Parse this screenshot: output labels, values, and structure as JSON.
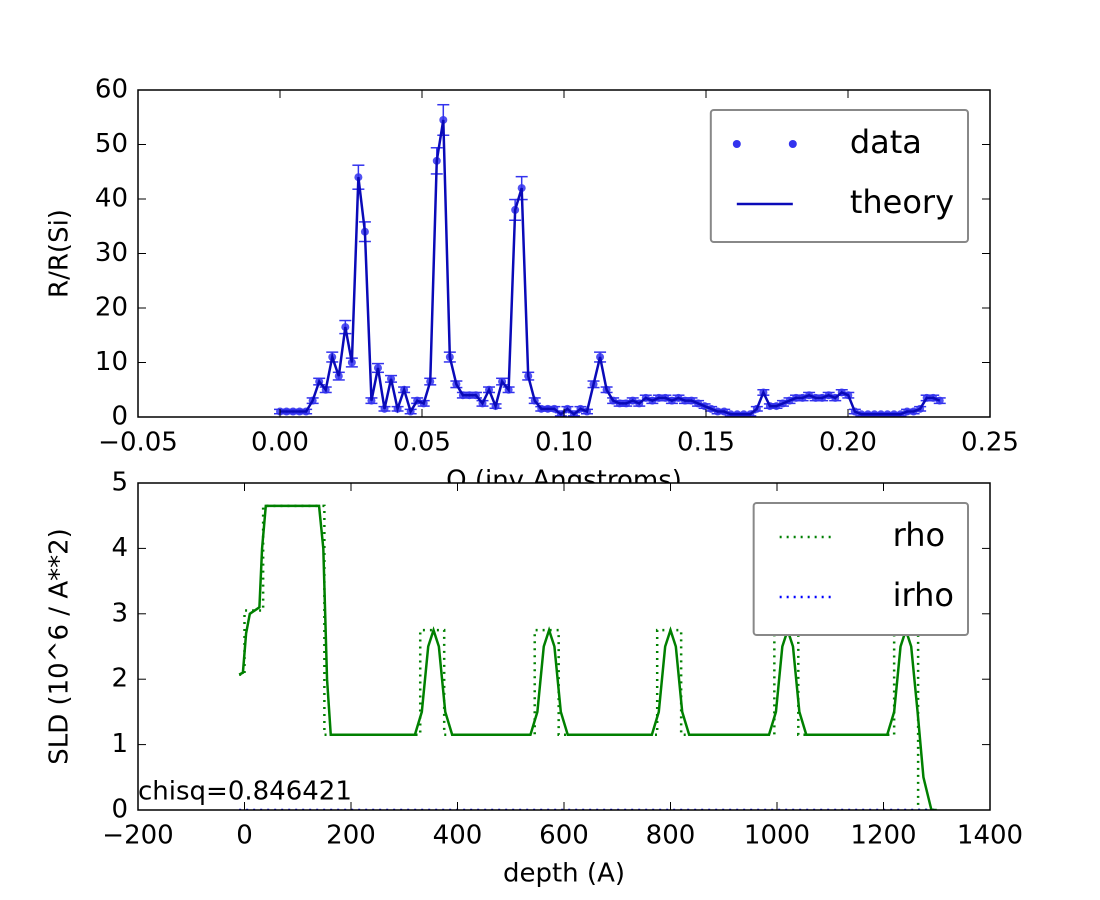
{
  "chart_data": [
    {
      "type": "line",
      "x_label": "Q (inv Angstroms)",
      "y_label": "R/R(Si)",
      "xlim": [
        -0.05,
        0.25
      ],
      "ylim": [
        0,
        60
      ],
      "xticks": [
        {
          "value": -0.05,
          "label": "−0.05"
        },
        {
          "value": 0,
          "label": "0.00"
        },
        0.05,
        {
          "value": 0.1,
          "label": "0.10"
        },
        0.15,
        {
          "value": 0.2,
          "label": "0.20"
        },
        0.25
      ],
      "yticks": [
        0,
        10,
        20,
        30,
        40,
        50,
        60
      ],
      "legend": "upper right",
      "x": [
        0,
        0.0023,
        0.0046,
        0.0069,
        0.0092,
        0.0115,
        0.0138,
        0.0161,
        0.0184,
        0.0207,
        0.023,
        0.0253,
        0.0276,
        0.0299,
        0.0322,
        0.0345,
        0.0368,
        0.0391,
        0.0414,
        0.0437,
        0.046,
        0.0483,
        0.0506,
        0.0529,
        0.0552,
        0.0575,
        0.0598,
        0.0621,
        0.0644,
        0.0667,
        0.069,
        0.0713,
        0.0736,
        0.0759,
        0.0782,
        0.0805,
        0.0828,
        0.0851,
        0.0874,
        0.0897,
        0.092,
        0.0943,
        0.0966,
        0.0989,
        0.1012,
        0.1035,
        0.1058,
        0.1081,
        0.1104,
        0.1127,
        0.115,
        0.1173,
        0.1196,
        0.1219,
        0.1242,
        0.1265,
        0.1288,
        0.1311,
        0.1334,
        0.1357,
        0.138,
        0.1403,
        0.1426,
        0.1449,
        0.1472,
        0.1495,
        0.1518,
        0.1541,
        0.1564,
        0.1587,
        0.161,
        0.1633,
        0.1656,
        0.1679,
        0.1702,
        0.1725,
        0.1748,
        0.1771,
        0.1794,
        0.1817,
        0.184,
        0.1863,
        0.1886,
        0.1909,
        0.1932,
        0.1955,
        0.1978,
        0.2001,
        0.2024,
        0.2047,
        0.207,
        0.2093,
        0.2116,
        0.2139,
        0.2162,
        0.2185,
        0.2208,
        0.2231,
        0.2254,
        0.2277,
        0.23,
        0.2323
      ],
      "series": [
        {
          "name": "data",
          "color": "#3333ee",
          "mode": "markers",
          "values": [
            1,
            1,
            1,
            1,
            1,
            3,
            6.5,
            5,
            11,
            7.5,
            16.5,
            10,
            44,
            34,
            3,
            9,
            1.5,
            7,
            1.5,
            5,
            1,
            3,
            2.5,
            6.5,
            47,
            54.5,
            11,
            6,
            4,
            4,
            4,
            2.5,
            5,
            2,
            6.5,
            5,
            38,
            42,
            7.5,
            3,
            1.5,
            1.5,
            1.5,
            0.5,
            1.5,
            0.5,
            1.5,
            1,
            6,
            11,
            5,
            3,
            2.5,
            2.5,
            3,
            2.5,
            3.5,
            3,
            3.5,
            3.5,
            3,
            3.5,
            3,
            3,
            2.5,
            2,
            1.5,
            1,
            1,
            0.5,
            0.5,
            0.5,
            0.5,
            1.5,
            4.5,
            2,
            2,
            2.5,
            3,
            3.5,
            3.5,
            4,
            3.5,
            3.5,
            4,
            3.5,
            4.5,
            4,
            1,
            0.5,
            0.5,
            0.5,
            0.5,
            0.5,
            0.5,
            0.5,
            1,
            1,
            1.5,
            3.5,
            3.5,
            3
          ],
          "errors": [
            0.4,
            0.4,
            0.4,
            0.4,
            0.4,
            0.5,
            0.6,
            0.5,
            0.9,
            0.7,
            1.2,
            0.8,
            2.2,
            1.8,
            0.5,
            0.8,
            0.4,
            0.6,
            0.4,
            0.5,
            0.4,
            0.5,
            0.5,
            0.6,
            2.4,
            2.8,
            0.9,
            0.6,
            0.5,
            0.5,
            0.5,
            0.5,
            0.5,
            0.4,
            0.6,
            0.5,
            1.9,
            2.1,
            0.7,
            0.5,
            0.4,
            0.4,
            0.4,
            0.3,
            0.4,
            0.3,
            0.4,
            0.4,
            0.6,
            0.9,
            0.5,
            0.5,
            0.5,
            0.5,
            0.5,
            0.5,
            0.5,
            0.5,
            0.5,
            0.5,
            0.5,
            0.5,
            0.5,
            0.5,
            0.5,
            0.4,
            0.4,
            0.4,
            0.4,
            0.3,
            0.3,
            0.3,
            0.3,
            0.4,
            0.5,
            0.4,
            0.4,
            0.5,
            0.5,
            0.5,
            0.5,
            0.5,
            0.5,
            0.5,
            0.5,
            0.5,
            0.5,
            0.5,
            0.4,
            0.3,
            0.3,
            0.3,
            0.3,
            0.3,
            0.3,
            0.3,
            0.4,
            0.4,
            0.4,
            0.5,
            0.5,
            0.5
          ]
        },
        {
          "name": "theory",
          "color": "#0a0ab8",
          "mode": "lines",
          "values": [
            1,
            1,
            1,
            1,
            1,
            3,
            6.5,
            5,
            11,
            7.5,
            16.5,
            10,
            44,
            34,
            3,
            9,
            1.5,
            7,
            1.5,
            5,
            1,
            3,
            2.5,
            6.5,
            47,
            54.5,
            11,
            6,
            4,
            4,
            4,
            2.5,
            5,
            2,
            6.5,
            5,
            38,
            42,
            7.5,
            3,
            1.5,
            1.5,
            1.5,
            0.5,
            1.5,
            0.5,
            1.5,
            1,
            6,
            11,
            5,
            3,
            2.5,
            2.5,
            3,
            2.5,
            3.5,
            3,
            3.5,
            3.5,
            3,
            3.5,
            3,
            3,
            2.5,
            2,
            1.5,
            1,
            1,
            0.5,
            0.5,
            0.5,
            0.5,
            1.5,
            4.5,
            2,
            2,
            2.5,
            3,
            3.5,
            3.5,
            4,
            3.5,
            3.5,
            4,
            3.5,
            4.5,
            4,
            1,
            0.5,
            0.5,
            0.5,
            0.5,
            0.5,
            0.5,
            0.5,
            1,
            1,
            1.5,
            3.5,
            3.5,
            3
          ]
        }
      ]
    },
    {
      "type": "line",
      "x_label": "depth (A)",
      "y_label": "SLD (10^6 / A**2)",
      "annotation": "chisq=0.846421",
      "xlim": [
        -200,
        1400
      ],
      "ylim": [
        0,
        5
      ],
      "xticks": [
        {
          "value": -200,
          "label": "−200"
        },
        0,
        200,
        400,
        600,
        800,
        1000,
        1200,
        1400
      ],
      "yticks": [
        0,
        1,
        2,
        3,
        4,
        5
      ],
      "legend": "upper right",
      "series": [
        {
          "name": "rho",
          "color": "#008000",
          "mode": "lines",
          "dash": "dotted",
          "x": [
            -10,
            0,
            0,
            35,
            35,
            150,
            150,
            330,
            330,
            375,
            375,
            545,
            545,
            590,
            590,
            775,
            775,
            820,
            820,
            995,
            995,
            1040,
            1040,
            1220,
            1220,
            1265,
            1265,
            1300
          ],
          "values": [
            2.07,
            2.07,
            3.05,
            3.05,
            4.65,
            4.65,
            1.15,
            1.15,
            2.75,
            2.75,
            1.15,
            1.15,
            2.75,
            2.75,
            1.15,
            1.15,
            2.75,
            2.75,
            1.15,
            1.15,
            2.75,
            2.75,
            1.15,
            1.15,
            2.75,
            2.75,
            0,
            0
          ]
        },
        {
          "name": "irho",
          "color": "#0000ff",
          "mode": "lines",
          "dash": "dotted",
          "x": [
            -10,
            1300
          ],
          "values": [
            0,
            0
          ]
        },
        {
          "color": "#008000",
          "mode": "lines",
          "x": [
            -10,
            -3,
            3,
            10,
            28,
            33,
            40,
            140,
            148,
            155,
            162,
            320,
            333,
            345,
            355,
            365,
            377,
            390,
            537,
            550,
            562,
            572,
            582,
            594,
            607,
            765,
            778,
            790,
            800,
            810,
            822,
            835,
            985,
            998,
            1010,
            1020,
            1030,
            1042,
            1055,
            1207,
            1220,
            1232,
            1242,
            1252,
            1264,
            1275,
            1290,
            1300
          ],
          "values": [
            2.07,
            2.1,
            2.7,
            3.0,
            3.1,
            4.0,
            4.65,
            4.65,
            4.0,
            2.0,
            1.15,
            1.15,
            1.5,
            2.5,
            2.75,
            2.5,
            1.5,
            1.15,
            1.15,
            1.5,
            2.5,
            2.75,
            2.5,
            1.5,
            1.15,
            1.15,
            1.5,
            2.5,
            2.75,
            2.5,
            1.5,
            1.15,
            1.15,
            1.5,
            2.5,
            2.75,
            2.5,
            1.5,
            1.15,
            1.15,
            1.5,
            2.5,
            2.75,
            2.5,
            1.5,
            0.5,
            0,
            0
          ]
        }
      ]
    }
  ]
}
